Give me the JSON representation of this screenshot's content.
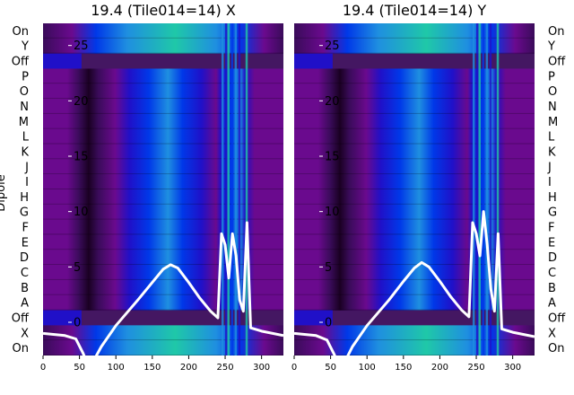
{
  "chart_data": [
    {
      "type": "heatmap",
      "title": "19.4 (Tile014=14) X",
      "ylabel": "Dipole",
      "row_labels": [
        "On",
        "Y",
        "Off",
        "P",
        "O",
        "N",
        "M",
        "L",
        "K",
        "J",
        "I",
        "H",
        "G",
        "F",
        "E",
        "D",
        "C",
        "B",
        "A",
        "Off",
        "X",
        "On"
      ],
      "x_ticks": [
        0,
        50,
        100,
        150,
        200,
        250,
        300
      ],
      "y_ticks": [
        0,
        5,
        10,
        15,
        20,
        25
      ],
      "xlim": [
        0,
        330
      ],
      "ylim": [
        -3,
        27
      ],
      "colormap": [
        "#1a0022",
        "#3a0b5a",
        "#6a0a8e",
        "#2010c8",
        "#0038e8",
        "#1f8fe0",
        "#1fc8a8"
      ],
      "line": {
        "color": "#ffffff",
        "x": [
          0,
          30,
          45,
          55,
          60,
          65,
          70,
          80,
          100,
          130,
          150,
          165,
          175,
          185,
          200,
          215,
          230,
          240,
          245,
          250,
          255,
          260,
          265,
          270,
          275,
          280,
          285,
          300,
          330
        ],
        "y": [
          -1,
          -1.2,
          -1.5,
          -2.8,
          -3.6,
          -3.8,
          -3.4,
          -2.2,
          -0.3,
          2,
          3.6,
          4.8,
          5.2,
          4.9,
          3.6,
          2.2,
          1,
          0.4,
          8,
          7,
          4,
          8,
          6,
          2,
          1,
          9,
          -0.5,
          -0.8,
          -1.2
        ]
      }
    },
    {
      "type": "heatmap",
      "title": "19.4 (Tile014=14) Y",
      "row_labels": [
        "On",
        "Y",
        "Off",
        "P",
        "O",
        "N",
        "M",
        "L",
        "K",
        "J",
        "I",
        "H",
        "G",
        "F",
        "E",
        "D",
        "C",
        "B",
        "A",
        "Off",
        "X",
        "On"
      ],
      "x_ticks": [
        0,
        50,
        100,
        150,
        200,
        250,
        300
      ],
      "y_ticks": [
        0,
        5,
        10,
        15,
        20,
        25
      ],
      "xlim": [
        0,
        330
      ],
      "ylim": [
        -3,
        27
      ],
      "colormap": [
        "#1a0022",
        "#3a0b5a",
        "#6a0a8e",
        "#2010c8",
        "#0038e8",
        "#1f8fe0",
        "#1fc8a8"
      ],
      "line": {
        "color": "#ffffff",
        "x": [
          0,
          30,
          45,
          55,
          60,
          65,
          70,
          80,
          100,
          130,
          150,
          165,
          175,
          185,
          200,
          215,
          230,
          240,
          245,
          250,
          255,
          260,
          265,
          270,
          275,
          280,
          285,
          300,
          330
        ],
        "y": [
          -1,
          -1.2,
          -1.6,
          -2.9,
          -3.7,
          -3.9,
          -3.5,
          -2.2,
          -0.3,
          2,
          3.7,
          4.9,
          5.4,
          5,
          3.7,
          2.3,
          1.1,
          0.5,
          9,
          8,
          6,
          10,
          7,
          3,
          1,
          8,
          -0.6,
          -0.9,
          -1.3
        ]
      }
    }
  ]
}
